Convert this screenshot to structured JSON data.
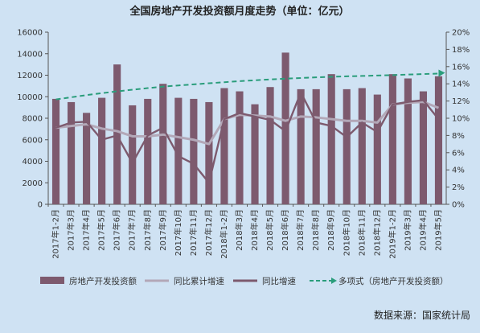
{
  "chart_data": {
    "type": "bar",
    "title": "全国房地产开发投资额月度走势（单位：亿元）",
    "categories": [
      "2017年1-2月",
      "2017年3月",
      "2017年4月",
      "2017年5月",
      "2017年6月",
      "2017年7月",
      "2017年8月",
      "2017年9月",
      "2017年10月",
      "2017年11月",
      "2017年12月",
      "2018年1-2月",
      "2018年3月",
      "2018年4月",
      "2018年5月",
      "2018年6月",
      "2018年7月",
      "2018年8月",
      "2018年9月",
      "2018年10月",
      "2018年11月",
      "2018年12月",
      "2019年1-2月",
      "2019年3月",
      "2019年4月",
      "2019年5月"
    ],
    "left_axis": {
      "ylim": [
        0,
        16000
      ],
      "ticks": [
        "0",
        "2000",
        "4000",
        "6000",
        "8000",
        "10000",
        "12000",
        "14000",
        "16000"
      ]
    },
    "right_axis": {
      "ylim": [
        0,
        20
      ],
      "ticks": [
        "0%",
        "2%",
        "4%",
        "6%",
        "8%",
        "10%",
        "12%",
        "14%",
        "16%",
        "18%",
        "20%"
      ]
    },
    "series": [
      {
        "name": "房地产开发投资额",
        "type": "bar",
        "axis": "left",
        "color": "#7d5a6e",
        "values": [
          9800,
          9500,
          8500,
          9900,
          13000,
          9200,
          9800,
          11200,
          9900,
          9800,
          9500,
          10800,
          10500,
          9300,
          10900,
          14100,
          10700,
          10700,
          12100,
          10700,
          10800,
          10200,
          12100,
          11700,
          10500,
          11900
        ]
      },
      {
        "name": "同比累计增速",
        "type": "line",
        "axis": "right",
        "color": "#b3a8b8",
        "values": [
          8.9,
          9.1,
          9.3,
          8.8,
          8.5,
          7.9,
          7.9,
          8.1,
          7.8,
          7.5,
          7.0,
          9.9,
          10.4,
          10.3,
          10.2,
          9.7,
          10.2,
          10.1,
          9.9,
          9.7,
          9.7,
          9.5,
          11.6,
          11.8,
          11.9,
          11.2
        ]
      },
      {
        "name": "同比增速",
        "type": "line",
        "axis": "right",
        "color": "#7d5a6e",
        "values": [
          8.9,
          9.5,
          9.6,
          7.5,
          8.0,
          4.8,
          8.0,
          8.9,
          5.6,
          4.7,
          2.5,
          9.9,
          10.6,
          10.2,
          9.8,
          8.5,
          13.0,
          9.5,
          9.1,
          7.8,
          9.5,
          8.4,
          11.6,
          11.9,
          12.1,
          9.9
        ]
      },
      {
        "name": "多项式（房地产开发投资额）",
        "type": "trendline",
        "axis": "left",
        "color": "#2a9d7b",
        "values": [
          9750,
          9950,
          10150,
          10330,
          10500,
          10650,
          10800,
          10940,
          11050,
          11150,
          11250,
          11350,
          11450,
          11530,
          11610,
          11680,
          11740,
          11800,
          11850,
          11900,
          11930,
          11970,
          12010,
          12060,
          12110,
          12150
        ]
      }
    ],
    "legend_position": "bottom",
    "grid": false
  },
  "footer": {
    "source": "数据来源：国家统计局"
  }
}
